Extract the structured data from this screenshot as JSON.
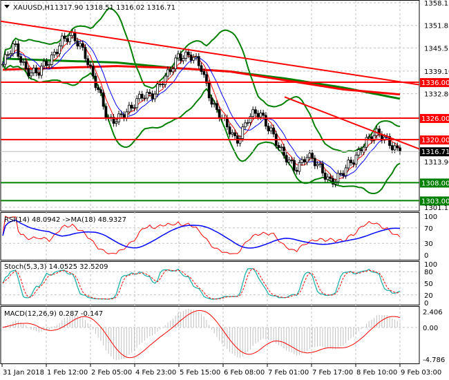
{
  "header": {
    "symbol": "XAUUSD,H1",
    "ohlc": "1317.90 1318.51 1316.02 1316.71"
  },
  "chart_data": [
    {
      "type": "candlestick",
      "title": "XAUUSD,H1",
      "ylim": [
        1301.15,
        1358.15
      ],
      "yticks": [
        "1358.15",
        "1351.85",
        "1345.55",
        "1339.10",
        "1332.80",
        "1313.90",
        "1301.15"
      ],
      "xticks": [
        "31 Jan 2018",
        "1 Feb 12:00",
        "2 Feb 05:00",
        "4 Feb 23:00",
        "5 Feb 15:00",
        "6 Feb 08:00",
        "7 Feb 01:00",
        "7 Feb 17:00",
        "8 Feb 10:00",
        "9 Feb 03:00"
      ],
      "close_approx": [
        1341,
        1346,
        1340,
        1338,
        1342,
        1348,
        1348,
        1345,
        1335,
        1325,
        1327,
        1328,
        1333,
        1333,
        1337,
        1344,
        1343,
        1340,
        1330,
        1324,
        1320,
        1326,
        1327,
        1323,
        1315,
        1312,
        1316,
        1312,
        1309,
        1310,
        1314,
        1320,
        1321,
        1320,
        1316.71
      ],
      "last_price": {
        "label": "1316.71",
        "color": "#000000"
      },
      "levels": [
        {
          "label": "1336.00",
          "value": 1336.0,
          "color": "#ff0000"
        },
        {
          "label": "1326.00",
          "value": 1326.0,
          "color": "#ff0000"
        },
        {
          "label": "1320.00",
          "value": 1320.0,
          "color": "#ff0000"
        },
        {
          "label": "1308.00",
          "value": 1308.0,
          "color": "#008000"
        },
        {
          "label": "1303.00",
          "value": 1303.0,
          "color": "#008000"
        }
      ],
      "trendlines": [
        {
          "from": 1353.0,
          "to": 1335.3,
          "color": "#ff0000"
        },
        {
          "from": 1331.9,
          "to": 1317.4,
          "color": "#ff0000"
        }
      ],
      "long_ma_red": [
        1339.5,
        1340.0,
        1340.5,
        1340.0,
        1339.0,
        1336.5,
        1334.0,
        1332.6
      ],
      "long_ma_green": [
        1342.6,
        1342.0,
        1341.5,
        1340.0,
        1339.0,
        1337.0,
        1334.5,
        1331.4
      ]
    },
    {
      "type": "line",
      "title": "RSI(14) 48.0942  ->MA(18) 48.9327",
      "ylim": [
        0,
        100
      ],
      "yticks": [
        "100",
        "70",
        "30",
        "0"
      ],
      "colors": [
        "#ff0000",
        "#0000ff"
      ]
    },
    {
      "type": "line",
      "title": "Stoch(5,3,3) 14.0525 32.5209",
      "ylim": [
        0,
        100
      ],
      "yticks": [
        "100",
        "80",
        "50",
        "20",
        "0"
      ],
      "colors": [
        "#20b2aa",
        "#ff0000"
      ]
    },
    {
      "type": "bar",
      "title": "MACD(12,26,9) 0.287 -0.147",
      "ylim": [
        -4.786,
        2.406
      ],
      "yticks": [
        "2.406",
        "0.00",
        "-4.786"
      ],
      "colors": [
        "#c0c0c0",
        "#ff0000"
      ]
    }
  ]
}
